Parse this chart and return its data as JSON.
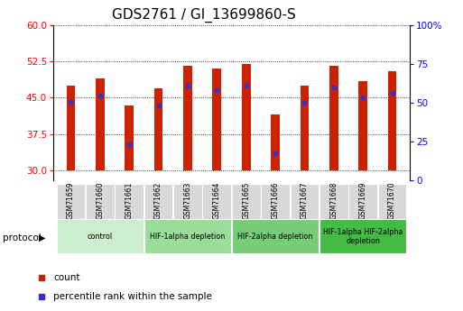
{
  "title": "GDS2761 / GI_13699860-S",
  "samples": [
    "GSM71659",
    "GSM71660",
    "GSM71661",
    "GSM71662",
    "GSM71663",
    "GSM71664",
    "GSM71665",
    "GSM71666",
    "GSM71667",
    "GSM71668",
    "GSM71669",
    "GSM71670"
  ],
  "bar_tops": [
    47.5,
    49.0,
    43.5,
    47.0,
    51.5,
    51.0,
    52.0,
    41.5,
    47.5,
    51.5,
    48.5,
    50.5
  ],
  "bar_bottoms": [
    30.0,
    30.0,
    30.0,
    30.0,
    30.0,
    30.0,
    30.0,
    30.0,
    30.0,
    30.0,
    30.0,
    30.0
  ],
  "blue_dot_y": [
    44.2,
    45.5,
    35.5,
    43.5,
    47.5,
    46.5,
    47.5,
    33.5,
    44.0,
    47.2,
    45.0,
    46.0
  ],
  "ylim_left": [
    28,
    60
  ],
  "ylim_right": [
    0,
    100
  ],
  "yticks_left": [
    30,
    37.5,
    45,
    52.5,
    60
  ],
  "yticks_right": [
    0,
    25,
    50,
    75,
    100
  ],
  "bar_color": "#cc2200",
  "dot_color": "#3333cc",
  "bg_color": "#ffffff",
  "protocol_groups": [
    {
      "label": "control",
      "start": 0,
      "end": 2,
      "color": "#cceecc"
    },
    {
      "label": "HIF-1alpha depletion",
      "start": 3,
      "end": 5,
      "color": "#99dd99"
    },
    {
      "label": "HIF-2alpha depletion",
      "start": 6,
      "end": 8,
      "color": "#77cc77"
    },
    {
      "label": "HIF-1alpha HIF-2alpha\ndepletion",
      "start": 9,
      "end": 11,
      "color": "#44bb44"
    }
  ],
  "legend_items": [
    {
      "label": "count",
      "color": "#cc2200"
    },
    {
      "label": "percentile rank within the sample",
      "color": "#3333cc"
    }
  ],
  "title_fontsize": 11,
  "tick_fontsize": 7.5,
  "bar_width": 0.3
}
